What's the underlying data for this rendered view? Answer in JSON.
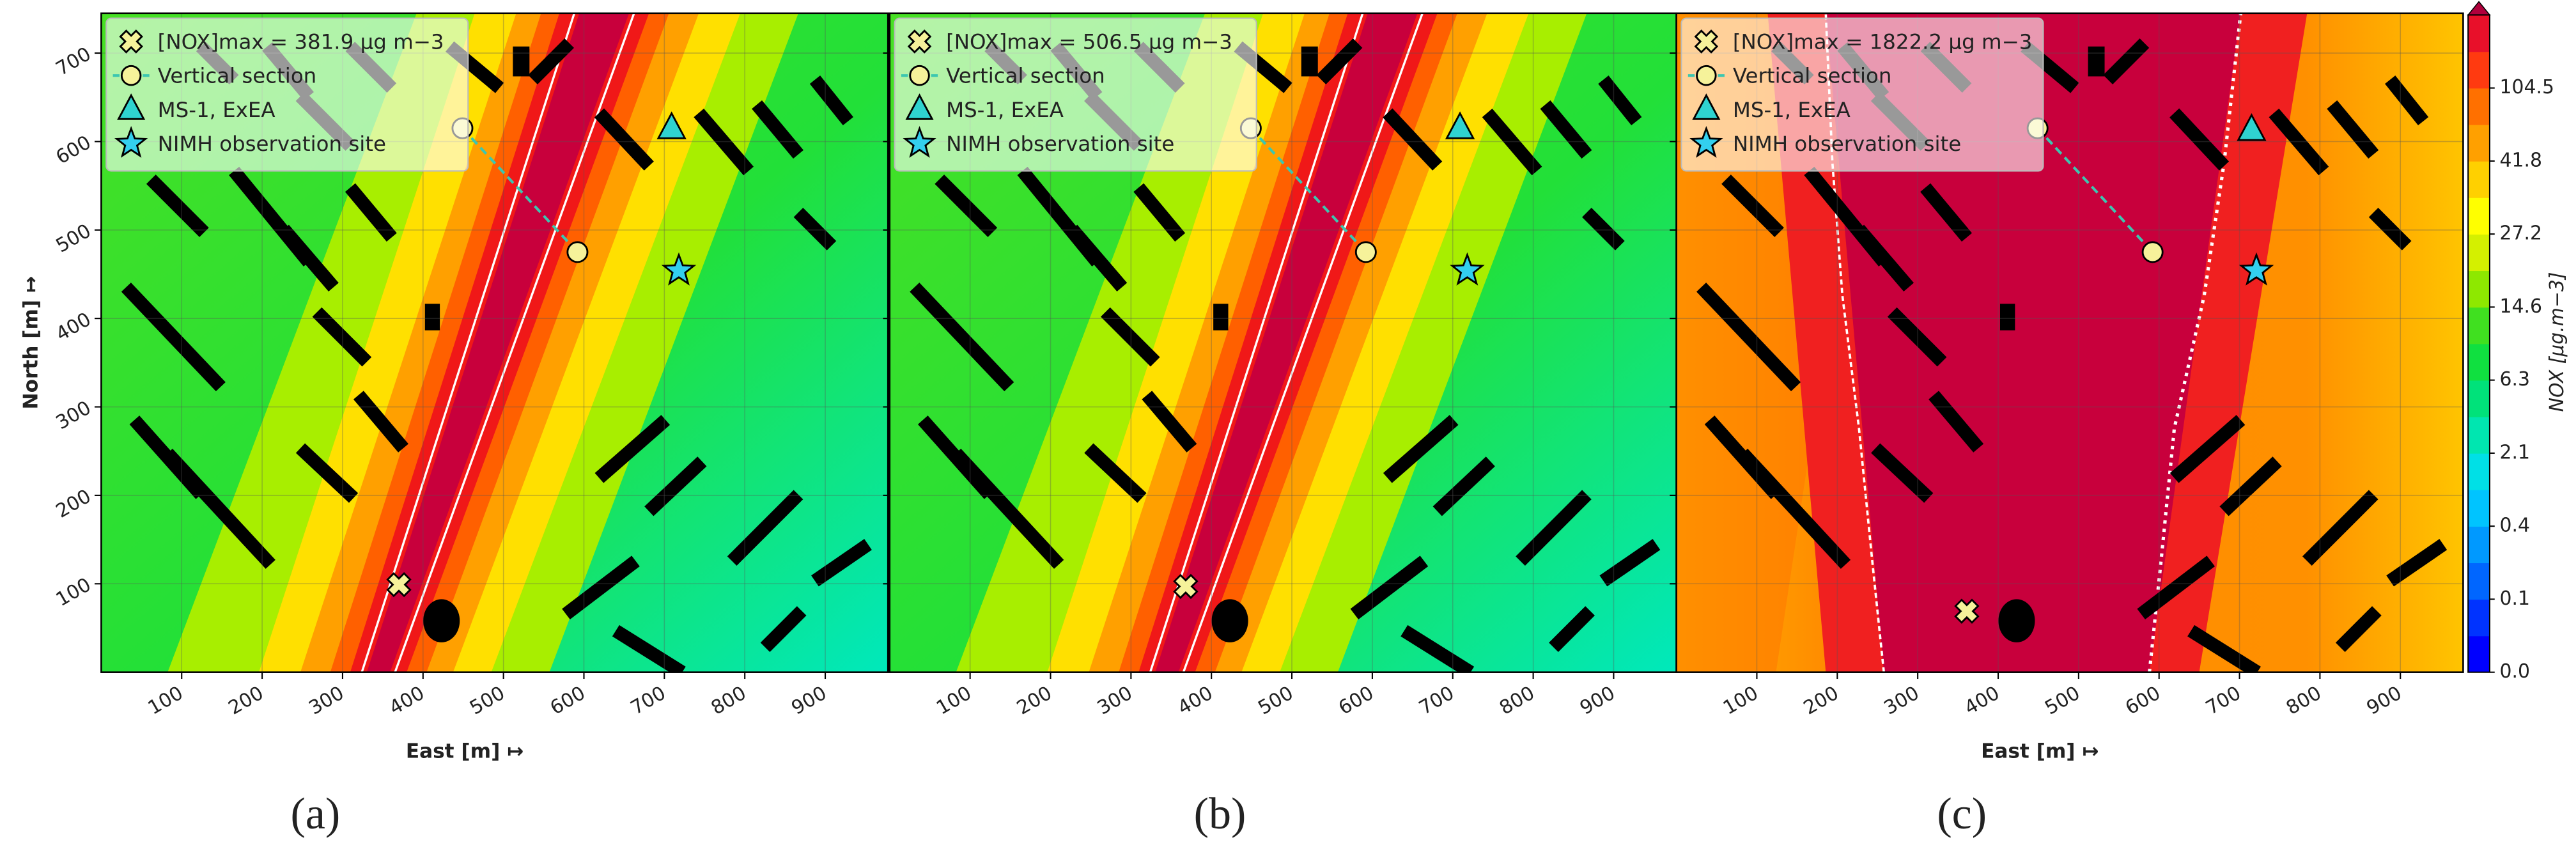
{
  "chart_data": [
    {
      "type": "scatter",
      "panel_label": "(a)",
      "xlabel": "East [m] ↦",
      "ylabel": "North [m] ↦",
      "field": "green",
      "grid": true,
      "xlim": [
        0,
        978
      ],
      "ylim": [
        0,
        745
      ],
      "xticks": [
        100,
        200,
        300,
        400,
        500,
        600,
        700,
        800,
        900
      ],
      "yticks": [
        100,
        200,
        300,
        400,
        500,
        600,
        700
      ],
      "series": [
        {
          "name": "[NOX]max = 381.9 μg m−3",
          "marker": "x",
          "color": "#f6f29a",
          "x": [
            370
          ],
          "y": [
            99
          ]
        },
        {
          "name": "Vertical section",
          "marker": "circle",
          "color": "#f6f29a",
          "line_color": "#3cc6b0",
          "x": [
            449,
            592
          ],
          "y": [
            615,
            475
          ]
        },
        {
          "name": "MS-1, ExEA",
          "marker": "triangle",
          "color": "#2fd3d0",
          "x": [
            709
          ],
          "y": [
            615
          ]
        },
        {
          "name": "NIMH observation site",
          "marker": "star",
          "color": "#33cfee",
          "x": [
            718
          ],
          "y": [
            454
          ]
        }
      ]
    },
    {
      "type": "scatter",
      "panel_label": "(b)",
      "field": "green",
      "grid": true,
      "xlim": [
        0,
        978
      ],
      "ylim": [
        0,
        745
      ],
      "xticks": [
        100,
        200,
        300,
        400,
        500,
        600,
        700,
        800,
        900
      ],
      "yticks": [
        100,
        200,
        300,
        400,
        500,
        600,
        700
      ],
      "series": [
        {
          "name": "[NOX]max = 506.5 μg m−3",
          "marker": "x",
          "color": "#f6f29a",
          "x": [
            368
          ],
          "y": [
            97
          ]
        },
        {
          "name": "Vertical section",
          "marker": "circle",
          "color": "#f6f29a",
          "line_color": "#3cc6b0",
          "x": [
            449,
            592
          ],
          "y": [
            615,
            475
          ]
        },
        {
          "name": "MS-1, ExEA",
          "marker": "triangle",
          "color": "#2fd3d0",
          "x": [
            709
          ],
          "y": [
            615
          ]
        },
        {
          "name": "NIMH observation site",
          "marker": "star",
          "color": "#33cfee",
          "x": [
            718
          ],
          "y": [
            454
          ]
        }
      ]
    },
    {
      "type": "scatter",
      "panel_label": "(c)",
      "xlabel": "East [m] ↦",
      "field": "red",
      "grid": true,
      "xlim": [
        0,
        978
      ],
      "ylim": [
        0,
        745
      ],
      "xticks": [
        100,
        200,
        300,
        400,
        500,
        600,
        700,
        800,
        900
      ],
      "yticks": [
        100,
        200,
        300,
        400,
        500,
        600,
        700
      ],
      "series": [
        {
          "name": "[NOX]max = 1822.2 μg m−3",
          "marker": "x",
          "color": "#f6f29a",
          "x": [
            361
          ],
          "y": [
            69
          ]
        },
        {
          "name": "Vertical section",
          "marker": "circle",
          "color": "#f6f29a",
          "line_color": "#3cc6b0",
          "x": [
            449,
            592
          ],
          "y": [
            615,
            475
          ]
        },
        {
          "name": "MS-1, ExEA",
          "marker": "triangle",
          "color": "#2fd3d0",
          "x": [
            715
          ],
          "y": [
            613
          ]
        },
        {
          "name": "NIMH observation site",
          "marker": "star",
          "color": "#33cfee",
          "x": [
            721
          ],
          "y": [
            454
          ]
        }
      ],
      "colorbar": {
        "label": "NOX [μg.m−3]",
        "ticks": [
          {
            "value": 0,
            "label": "0.0"
          },
          0.1,
          0.4,
          2.1,
          6.3,
          14.6,
          27.2,
          41.8,
          104.5
        ],
        "colors": [
          "#0000ff",
          "#0033ff",
          "#0066ff",
          "#0099ff",
          "#00c4ff",
          "#00e0e6",
          "#00e6b0",
          "#00e27a",
          "#10e040",
          "#40e020",
          "#8ee800",
          "#d4f000",
          "#ffff00",
          "#ffd000",
          "#ffa000",
          "#ff7000",
          "#ff3a10",
          "#e8102a"
        ],
        "extend_color": "#b0003c"
      }
    }
  ]
}
